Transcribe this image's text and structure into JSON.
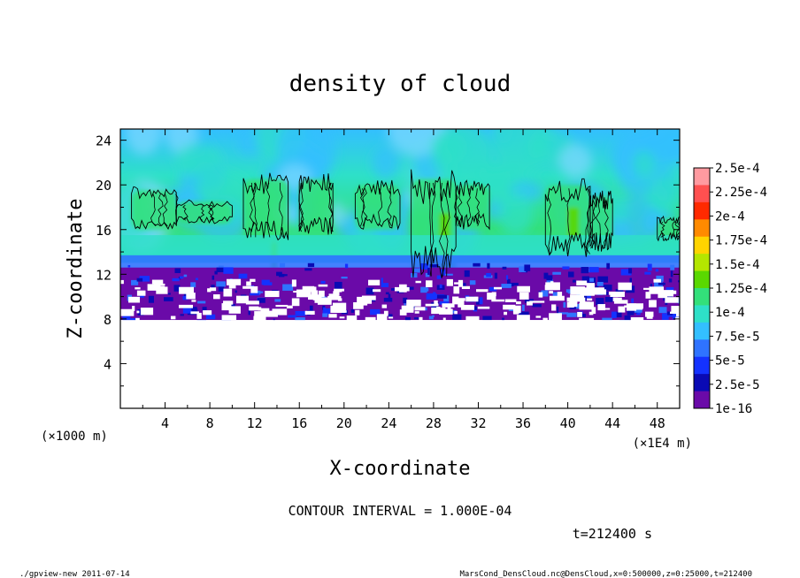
{
  "chart_data": {
    "type": "heatmap",
    "title": "density of cloud",
    "xlabel": "X-coordinate",
    "ylabel": "Z-coordinate",
    "x_unit_left": "(×1000 m)",
    "x_unit_right": "(×1E4 m)",
    "xlim": [
      0,
      50
    ],
    "ylim": [
      0,
      25
    ],
    "x_ticks": [
      "4",
      "8",
      "12",
      "16",
      "20",
      "24",
      "28",
      "32",
      "36",
      "40",
      "44",
      "48"
    ],
    "y_ticks": [
      "4",
      "8",
      "12",
      "16",
      "20",
      "24"
    ],
    "x_tick_values": [
      4,
      8,
      12,
      16,
      20,
      24,
      28,
      32,
      36,
      40,
      44,
      48
    ],
    "y_tick_values": [
      4,
      8,
      12,
      16,
      20,
      24
    ],
    "cloud_base_z": 7.9,
    "colorbar": {
      "labels": [
        "2.5e-4",
        "2.25e-4",
        "2e-4",
        "1.75e-4",
        "1.5e-4",
        "1.25e-4",
        "1e-4",
        "7.5e-5",
        "5e-5",
        "2.5e-5",
        "1e-16"
      ],
      "colors": [
        "#ff9aa0",
        "#ff5050",
        "#ff2a00",
        "#ff8a00",
        "#ffd400",
        "#b4e600",
        "#5ad800",
        "#33e07a",
        "#2ee0c8",
        "#33bfff",
        "#2f73ff",
        "#1432ff",
        "#0a0ab4",
        "#6a0aa8"
      ]
    },
    "contour_interval": "CONTOUR INTERVAL = 1.000E-04",
    "time_label": "t=212400 s"
  },
  "footer": {
    "left": "./gpview-new   2011-07-14",
    "right": "MarsCond_DensCloud.nc@DensCloud,x=0:500000,z=0:25000,t=212400"
  }
}
